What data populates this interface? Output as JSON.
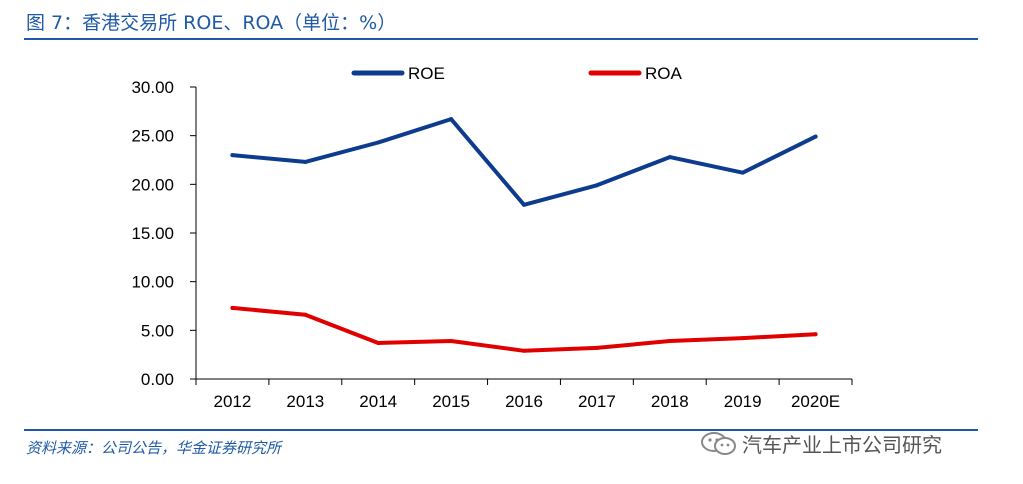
{
  "header": {
    "title": "图 7：香港交易所 ROE、ROA（单位：%）"
  },
  "footer": {
    "source": "资料来源：公司公告，华金证券研究所",
    "watermark": "汽车产业上市公司研究"
  },
  "chart_data": {
    "type": "line",
    "title": "",
    "xlabel": "",
    "ylabel": "",
    "categories": [
      "2012",
      "2013",
      "2014",
      "2015",
      "2016",
      "2017",
      "2018",
      "2019",
      "2020E"
    ],
    "ylim": [
      0,
      30
    ],
    "yticks": [
      "0.00",
      "5.00",
      "10.00",
      "15.00",
      "20.00",
      "25.00",
      "30.00"
    ],
    "grid": false,
    "legend_position": "top",
    "series": [
      {
        "name": "ROE",
        "color": "#0d3c8f",
        "values": [
          23.0,
          22.3,
          24.3,
          26.7,
          17.9,
          19.9,
          22.8,
          21.2,
          24.9
        ]
      },
      {
        "name": "ROA",
        "color": "#e00000",
        "values": [
          7.3,
          6.6,
          3.7,
          3.9,
          2.9,
          3.2,
          3.9,
          4.2,
          4.6
        ]
      }
    ]
  }
}
